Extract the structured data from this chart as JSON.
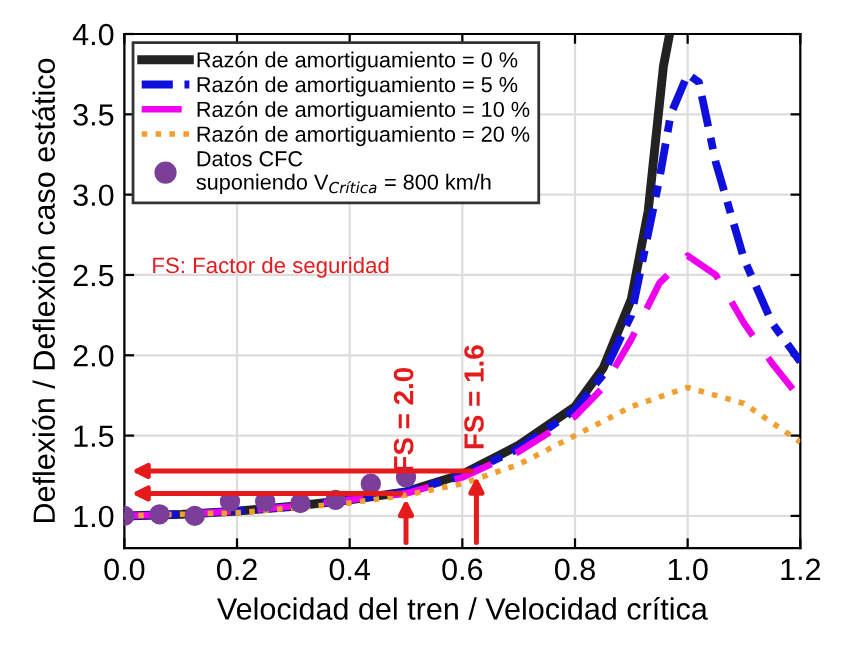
{
  "chart_data": {
    "type": "line",
    "xlabel": "Velocidad del tren / Velocidad crítica",
    "ylabel": "Deflexión / Deflexión caso estático",
    "xlim": [
      0,
      1.2
    ],
    "ylim": [
      0.8,
      4.0
    ],
    "xticks": [
      {
        "value": 0,
        "label": "0.0"
      },
      {
        "value": 0.2,
        "label": "0.2"
      },
      {
        "value": 0.4,
        "label": "0.4"
      },
      {
        "value": 0.6,
        "label": "0.6"
      },
      {
        "value": 0.8,
        "label": "0.8"
      },
      {
        "value": 1.0,
        "label": "1.0"
      },
      {
        "value": 1.2,
        "label": "1.2"
      }
    ],
    "yticks": [
      {
        "value": 1.0,
        "label": "1.0"
      },
      {
        "value": 1.5,
        "label": "1.5"
      },
      {
        "value": 2.0,
        "label": "2.0"
      },
      {
        "value": 2.5,
        "label": "2.5"
      },
      {
        "value": 3.0,
        "label": "3.0"
      },
      {
        "value": 3.5,
        "label": "3.5"
      },
      {
        "value": 4.0,
        "label": "4.0"
      }
    ],
    "grid": true,
    "legend": "top left",
    "series": [
      {
        "name": "Razón de amortiguamiento = 0 %",
        "color": "#222222",
        "line_style": "solid",
        "x": [
          0,
          0.1,
          0.2,
          0.3,
          0.4,
          0.5,
          0.6,
          0.7,
          0.8,
          0.85,
          0.9,
          0.93,
          0.957,
          0.968
        ],
        "values": [
          1.0,
          1.01,
          1.03,
          1.06,
          1.1,
          1.15,
          1.26,
          1.44,
          1.68,
          1.92,
          2.35,
          2.9,
          3.8,
          4.0
        ]
      },
      {
        "name": "Razón de amortiguamiento = 5 %",
        "color": "#1010dd",
        "line_style": "dashdot",
        "x": [
          0,
          0.1,
          0.2,
          0.3,
          0.4,
          0.5,
          0.6,
          0.7,
          0.8,
          0.85,
          0.9,
          0.95,
          0.97,
          1.0,
          1.02,
          1.05,
          1.1,
          1.15,
          1.2
        ],
        "values": [
          1.0,
          1.01,
          1.03,
          1.06,
          1.1,
          1.15,
          1.25,
          1.42,
          1.66,
          1.88,
          2.25,
          3.1,
          3.5,
          3.75,
          3.7,
          3.2,
          2.6,
          2.2,
          1.96
        ]
      },
      {
        "name": "Razón de amortiguamiento = 10 %",
        "color": "#ee00ee",
        "line_style": "dashed",
        "x": [
          0,
          0.1,
          0.2,
          0.3,
          0.4,
          0.5,
          0.6,
          0.7,
          0.8,
          0.85,
          0.9,
          0.95,
          1.0,
          1.05,
          1.1,
          1.15,
          1.2
        ],
        "values": [
          1.0,
          1.01,
          1.03,
          1.06,
          1.1,
          1.14,
          1.24,
          1.4,
          1.62,
          1.8,
          2.1,
          2.45,
          2.62,
          2.5,
          2.2,
          1.95,
          1.73
        ]
      },
      {
        "name": "Razón de amortiguamiento = 20 %",
        "color": "#f0a030",
        "line_style": "dotted",
        "x": [
          0,
          0.1,
          0.2,
          0.3,
          0.4,
          0.5,
          0.6,
          0.7,
          0.8,
          0.9,
          1.0,
          1.1,
          1.2
        ],
        "values": [
          1.0,
          1.01,
          1.02,
          1.05,
          1.08,
          1.13,
          1.2,
          1.32,
          1.5,
          1.68,
          1.8,
          1.7,
          1.46
        ]
      },
      {
        "name": "Datos CFC\nsuponiendo V$_{Crítica}$ = 800 km/h",
        "type": "scatter",
        "marker": "circle",
        "color": "#7b3f99",
        "x": [
          0,
          0.0625,
          0.125,
          0.1875,
          0.25,
          0.3125,
          0.375,
          0.4375,
          0.5
        ],
        "values": [
          1.0,
          1.01,
          1.0,
          1.09,
          1.09,
          1.08,
          1.1,
          1.2,
          1.24
        ]
      }
    ],
    "annotations": [
      "FS: Factor de seguridad",
      {
        "text": "FS = 2.0",
        "x": 0.5,
        "y": 1.14
      },
      {
        "text": "FS = 1.6",
        "x": 0.625,
        "y": 1.28
      }
    ]
  }
}
